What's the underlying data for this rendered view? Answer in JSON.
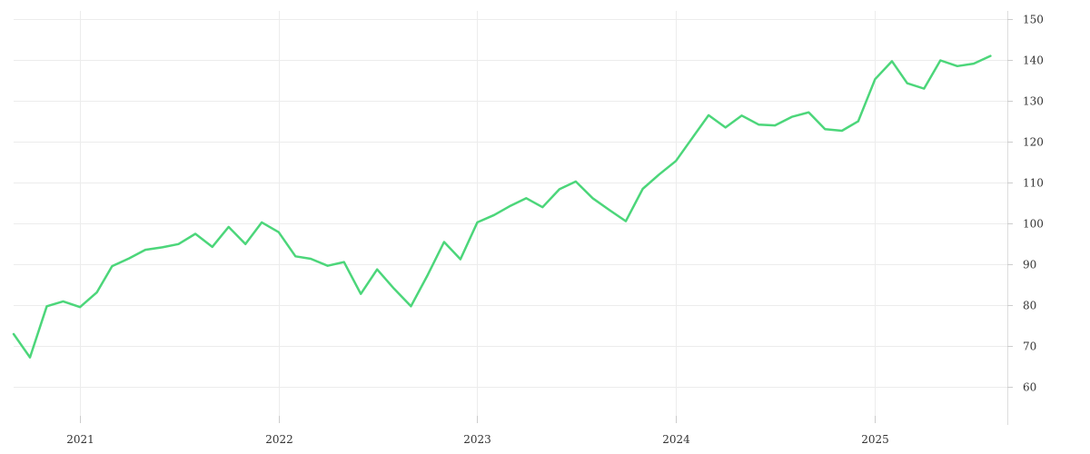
{
  "chart_data": {
    "type": "line",
    "title": "",
    "xlabel": "",
    "ylabel": "",
    "grid": true,
    "legend": "none",
    "y_axis_side": "right",
    "ylim": [
      53,
      152
    ],
    "xlim": [
      "2020-09-01",
      "2025-09-01"
    ],
    "y_ticks": [
      60,
      70,
      80,
      90,
      100,
      110,
      120,
      130,
      140,
      150
    ],
    "y_tick_labels": [
      "60",
      "70",
      "80",
      "90",
      "100",
      "110",
      "120",
      "130",
      "140",
      "150"
    ],
    "x_ticks": [
      "2021-01-01",
      "2022-01-01",
      "2023-01-01",
      "2024-01-01",
      "2025-01-01"
    ],
    "x_tick_labels": [
      "2021",
      "2022",
      "2023",
      "2024",
      "2025"
    ],
    "series": [
      {
        "color": "#4cd67a",
        "x": [
          "2020-09-01",
          "2020-10-01",
          "2020-11-01",
          "2020-12-01",
          "2021-01-01",
          "2021-02-01",
          "2021-03-01",
          "2021-04-01",
          "2021-05-01",
          "2021-06-01",
          "2021-07-01",
          "2021-08-01",
          "2021-09-01",
          "2021-10-01",
          "2021-11-01",
          "2021-12-01",
          "2022-01-01",
          "2022-02-01",
          "2022-03-01",
          "2022-04-01",
          "2022-05-01",
          "2022-06-01",
          "2022-07-01",
          "2022-08-01",
          "2022-09-01",
          "2022-10-01",
          "2022-11-01",
          "2022-12-01",
          "2023-01-01",
          "2023-02-01",
          "2023-03-01",
          "2023-04-01",
          "2023-05-01",
          "2023-06-01",
          "2023-07-01",
          "2023-08-01",
          "2023-09-01",
          "2023-10-01",
          "2023-11-01",
          "2023-12-01",
          "2024-01-01",
          "2024-02-01",
          "2024-03-01",
          "2024-04-01",
          "2024-05-01",
          "2024-06-01",
          "2024-07-01",
          "2024-08-01",
          "2024-09-01",
          "2024-10-01",
          "2024-11-01",
          "2024-12-01",
          "2025-01-01",
          "2025-02-01",
          "2025-03-01",
          "2025-04-01",
          "2025-05-01",
          "2025-06-01",
          "2025-07-01",
          "2025-08-01"
        ],
        "values": [
          73.0,
          67.3,
          79.8,
          81.0,
          79.6,
          83.2,
          89.6,
          91.5,
          93.6,
          94.2,
          95.0,
          97.5,
          94.3,
          99.2,
          95.0,
          100.3,
          97.9,
          92.0,
          91.4,
          89.7,
          90.6,
          82.8,
          88.8,
          84.1,
          79.8,
          87.2,
          95.5,
          91.3,
          100.3,
          102.1,
          104.2,
          106.2,
          104.0,
          108.4,
          110.3,
          106.2,
          103.3,
          100.6,
          108.5,
          112.0,
          115.3,
          121.1,
          126.5,
          123.5,
          126.4,
          124.2,
          124.0,
          126.1,
          127.2,
          123.1,
          122.7,
          125.0,
          135.3,
          139.7,
          134.3,
          133.0,
          139.9,
          138.5,
          139.1,
          141.0
        ]
      }
    ]
  }
}
